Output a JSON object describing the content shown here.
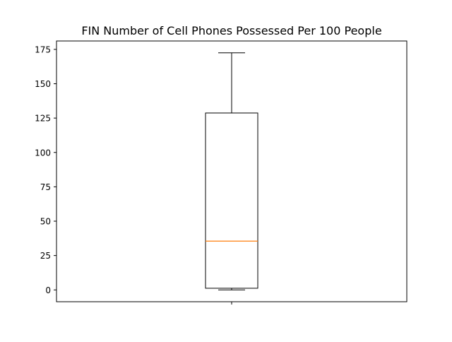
{
  "chart_data": {
    "type": "box",
    "title": "FIN Number of Cell Phones Possessed Per 100 People",
    "xlabel": "",
    "ylabel": "",
    "categories": [
      ""
    ],
    "box": {
      "whisker_low": 0,
      "q1": 1.2,
      "median": 35.5,
      "q3": 128.7,
      "whisker_high": 172.5
    },
    "ylim": [
      -8.6,
      181.1
    ],
    "yticks": [
      0,
      25,
      50,
      75,
      100,
      125,
      150,
      175
    ],
    "grid": false,
    "colors": {
      "box": "#000000",
      "median": "#ff7f0e",
      "axes": "#000000"
    }
  }
}
